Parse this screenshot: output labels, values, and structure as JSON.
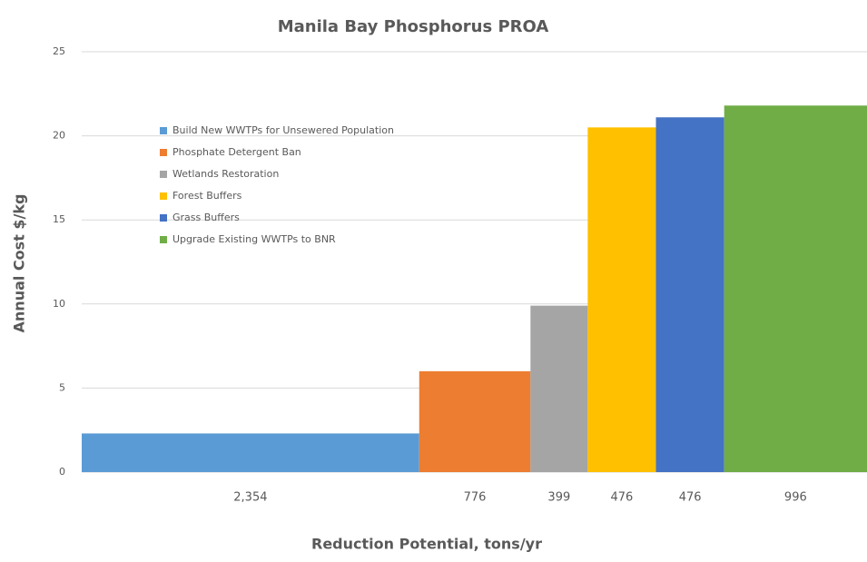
{
  "chart_data": {
    "type": "variable-width-bar",
    "title": "Manila Bay Phosphorus PROA",
    "x_label": "Reduction Potential, tons/yr",
    "y_label": "Annual Cost  $/kg",
    "ylim": [
      0,
      25
    ],
    "yticks": [
      0,
      5,
      10,
      15,
      20,
      25
    ],
    "grid": true,
    "legend": "upper left",
    "series": [
      {
        "name": "Build New WWTPs for Unsewered Population",
        "color": "#5b9bd5",
        "value": 2.3,
        "width": 2354,
        "width_label": "2,354"
      },
      {
        "name": "Phosphate Detergent Ban",
        "color": "#ed7d31",
        "value": 6.0,
        "width": 776,
        "width_label": "776"
      },
      {
        "name": "Wetlands Restoration",
        "color": "#a5a5a5",
        "value": 9.9,
        "width": 399,
        "width_label": "399"
      },
      {
        "name": "Forest Buffers",
        "color": "#ffc000",
        "value": 20.5,
        "width": 476,
        "width_label": "476"
      },
      {
        "name": "Grass Buffers",
        "color": "#4472c4",
        "value": 21.1,
        "width": 476,
        "width_label": "476"
      },
      {
        "name": "Upgrade Existing WWTPs to BNR",
        "color": "#70ad47",
        "value": 21.8,
        "width": 996,
        "width_label": "996"
      }
    ]
  }
}
